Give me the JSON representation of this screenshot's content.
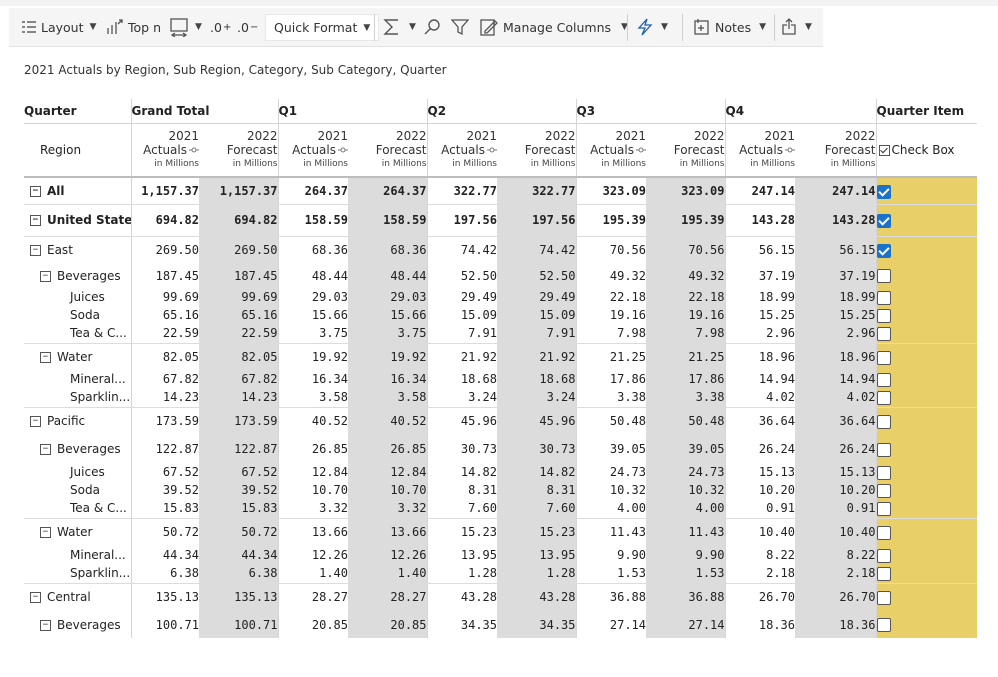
{
  "toolbar": {
    "layout": "Layout",
    "topn": "Top n",
    "dec_add": ".0",
    "dec_sub": ".0",
    "quick_format": "Quick Format",
    "manage_columns": "Manage Columns",
    "notes": "Notes"
  },
  "subtitle": "2021 Actuals by Region, Sub Region, Category, Sub Category, Quarter",
  "headers": {
    "quarter": "Quarter",
    "grand_total": "Grand Total",
    "q1": "Q1",
    "q2": "Q2",
    "q3": "Q3",
    "q4": "Q4",
    "quarter_item": "Quarter Item",
    "region": "Region",
    "year_a": "2021",
    "actuals": "Actuals",
    "year_f": "2022",
    "forecast": "Forecast",
    "units": "in Millions",
    "checkbox": "Check Box"
  },
  "rows": [
    {
      "label": "All",
      "level": 0,
      "toggle": true,
      "bold": true,
      "checked": true,
      "vals": [
        "1,157.37",
        "1,157.37",
        "264.37",
        "264.37",
        "322.77",
        "322.77",
        "323.09",
        "323.09",
        "247.14",
        "247.14"
      ]
    },
    {
      "label": "United States",
      "level": 0,
      "toggle": true,
      "bold": true,
      "checked": true,
      "vals": [
        "694.82",
        "694.82",
        "158.59",
        "158.59",
        "197.56",
        "197.56",
        "195.39",
        "195.39",
        "143.28",
        "143.28"
      ]
    },
    {
      "label": "East",
      "level": 1,
      "toggle": true,
      "bold": false,
      "checked": true,
      "vals": [
        "269.50",
        "269.50",
        "68.36",
        "68.36",
        "74.42",
        "74.42",
        "70.56",
        "70.56",
        "56.15",
        "56.15"
      ]
    },
    {
      "label": "Beverages",
      "level": 2,
      "toggle": true,
      "bold": false,
      "checked": false,
      "vals": [
        "187.45",
        "187.45",
        "48.44",
        "48.44",
        "52.50",
        "52.50",
        "49.32",
        "49.32",
        "37.19",
        "37.19"
      ]
    },
    {
      "label": "Juices",
      "level": 3,
      "toggle": false,
      "bold": false,
      "checked": false,
      "vals": [
        "99.69",
        "99.69",
        "29.03",
        "29.03",
        "29.49",
        "29.49",
        "22.18",
        "22.18",
        "18.99",
        "18.99"
      ]
    },
    {
      "label": "Soda",
      "level": 3,
      "toggle": false,
      "bold": false,
      "checked": false,
      "vals": [
        "65.16",
        "65.16",
        "15.66",
        "15.66",
        "15.09",
        "15.09",
        "19.16",
        "19.16",
        "15.25",
        "15.25"
      ]
    },
    {
      "label": "Tea & C...",
      "level": 3,
      "toggle": false,
      "bold": false,
      "checked": false,
      "vals": [
        "22.59",
        "22.59",
        "3.75",
        "3.75",
        "7.91",
        "7.91",
        "7.98",
        "7.98",
        "2.96",
        "2.96"
      ]
    },
    {
      "label": "Water",
      "level": 2,
      "toggle": true,
      "bold": false,
      "checked": false,
      "vals": [
        "82.05",
        "82.05",
        "19.92",
        "19.92",
        "21.92",
        "21.92",
        "21.25",
        "21.25",
        "18.96",
        "18.96"
      ]
    },
    {
      "label": "Mineral...",
      "level": 3,
      "toggle": false,
      "bold": false,
      "checked": false,
      "vals": [
        "67.82",
        "67.82",
        "16.34",
        "16.34",
        "18.68",
        "18.68",
        "17.86",
        "17.86",
        "14.94",
        "14.94"
      ]
    },
    {
      "label": "Sparklin...",
      "level": 3,
      "toggle": false,
      "bold": false,
      "checked": false,
      "vals": [
        "14.23",
        "14.23",
        "3.58",
        "3.58",
        "3.24",
        "3.24",
        "3.38",
        "3.38",
        "4.02",
        "4.02"
      ]
    },
    {
      "label": "Pacific",
      "level": 1,
      "toggle": true,
      "bold": false,
      "checked": false,
      "vals": [
        "173.59",
        "173.59",
        "40.52",
        "40.52",
        "45.96",
        "45.96",
        "50.48",
        "50.48",
        "36.64",
        "36.64"
      ]
    },
    {
      "label": "Beverages",
      "level": 2,
      "toggle": true,
      "bold": false,
      "checked": false,
      "vals": [
        "122.87",
        "122.87",
        "26.85",
        "26.85",
        "30.73",
        "30.73",
        "39.05",
        "39.05",
        "26.24",
        "26.24"
      ]
    },
    {
      "label": "Juices",
      "level": 3,
      "toggle": false,
      "bold": false,
      "checked": false,
      "vals": [
        "67.52",
        "67.52",
        "12.84",
        "12.84",
        "14.82",
        "14.82",
        "24.73",
        "24.73",
        "15.13",
        "15.13"
      ]
    },
    {
      "label": "Soda",
      "level": 3,
      "toggle": false,
      "bold": false,
      "checked": false,
      "vals": [
        "39.52",
        "39.52",
        "10.70",
        "10.70",
        "8.31",
        "8.31",
        "10.32",
        "10.32",
        "10.20",
        "10.20"
      ]
    },
    {
      "label": "Tea & C...",
      "level": 3,
      "toggle": false,
      "bold": false,
      "checked": false,
      "vals": [
        "15.83",
        "15.83",
        "3.32",
        "3.32",
        "7.60",
        "7.60",
        "4.00",
        "4.00",
        "0.91",
        "0.91"
      ]
    },
    {
      "label": "Water",
      "level": 2,
      "toggle": true,
      "bold": false,
      "checked": false,
      "vals": [
        "50.72",
        "50.72",
        "13.66",
        "13.66",
        "15.23",
        "15.23",
        "11.43",
        "11.43",
        "10.40",
        "10.40"
      ]
    },
    {
      "label": "Mineral...",
      "level": 3,
      "toggle": false,
      "bold": false,
      "checked": false,
      "vals": [
        "44.34",
        "44.34",
        "12.26",
        "12.26",
        "13.95",
        "13.95",
        "9.90",
        "9.90",
        "8.22",
        "8.22"
      ]
    },
    {
      "label": "Sparklin...",
      "level": 3,
      "toggle": false,
      "bold": false,
      "checked": false,
      "vals": [
        "6.38",
        "6.38",
        "1.40",
        "1.40",
        "1.28",
        "1.28",
        "1.53",
        "1.53",
        "2.18",
        "2.18"
      ]
    },
    {
      "label": "Central",
      "level": 1,
      "toggle": true,
      "bold": false,
      "checked": false,
      "vals": [
        "135.13",
        "135.13",
        "28.27",
        "28.27",
        "43.28",
        "43.28",
        "36.88",
        "36.88",
        "26.70",
        "26.70"
      ]
    },
    {
      "label": "Beverages",
      "level": 2,
      "toggle": true,
      "bold": false,
      "checked": false,
      "vals": [
        "100.71",
        "100.71",
        "20.85",
        "20.85",
        "34.35",
        "34.35",
        "27.14",
        "27.14",
        "18.36",
        "18.36"
      ]
    }
  ],
  "colors": {
    "forecast_bg": "#dcdcdc",
    "checkbox_col": "#e8cf68",
    "check_on": "#1a73c9"
  }
}
